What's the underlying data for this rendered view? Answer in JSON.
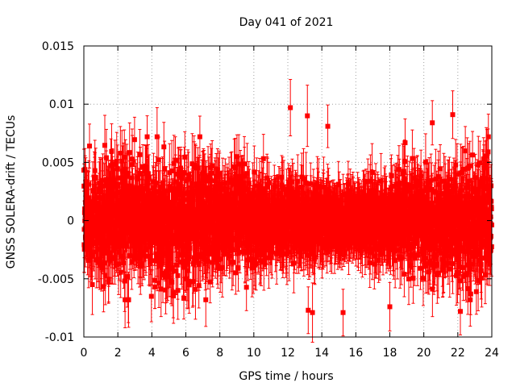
{
  "chart_data": {
    "type": "scatter",
    "title": "Day 041 of 2021",
    "xlabel": "GPS time / hours",
    "ylabel": "GNSS SOLERA-drift / TECUs",
    "xlim": [
      0,
      24
    ],
    "ylim": [
      -0.01,
      0.015
    ],
    "x_ticks": [
      "0",
      "2",
      "4",
      "6",
      "8",
      "10",
      "12",
      "14",
      "16",
      "18",
      "20",
      "22",
      "24"
    ],
    "y_ticks": [
      "-0.01",
      "-0.005",
      "0",
      "0.005",
      "0.01",
      "0.015"
    ],
    "grid": true,
    "color": "#ff0000",
    "marker": "square",
    "error_bars": true,
    "sampling_interval_hours": 0.008333,
    "spread_std_tecu": 0.0022,
    "error_bar_half_width_tecu": 0.0022,
    "notable_points": [
      {
        "x": 12.15,
        "y": 0.0097
      },
      {
        "x": 13.15,
        "y": 0.009
      },
      {
        "x": 14.35,
        "y": 0.0081
      },
      {
        "x": 20.5,
        "y": 0.0084
      },
      {
        "x": 21.7,
        "y": 0.0091
      },
      {
        "x": 13.2,
        "y": -0.0077
      },
      {
        "x": 13.45,
        "y": -0.0079
      },
      {
        "x": 15.25,
        "y": -0.0079
      },
      {
        "x": 18.0,
        "y": -0.0074
      },
      {
        "x": 22.15,
        "y": -0.0078
      },
      {
        "x": 0.5,
        "y": -0.0055
      },
      {
        "x": 1.45,
        "y": -0.0053
      }
    ]
  }
}
